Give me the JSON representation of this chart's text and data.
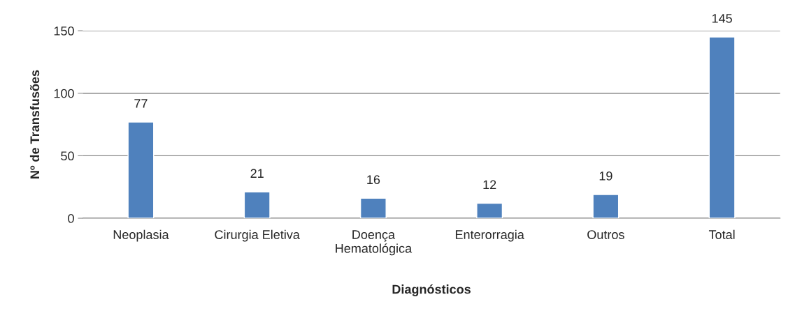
{
  "chart_data": {
    "type": "bar",
    "categories": [
      "Neoplasia",
      "Cirurgia Eletiva",
      "Doença\nHematológica",
      "Enterorragia",
      "Outros",
      "Total"
    ],
    "values": [
      77,
      21,
      16,
      12,
      19,
      145
    ],
    "color": "#4f81bd",
    "xlabel": "Diagnósticos",
    "ylabel": "Nº de Transfusões",
    "ylim": [
      0,
      150
    ],
    "yticks": [
      0,
      50,
      100,
      150
    ],
    "grid": "y",
    "data_labels": true
  }
}
